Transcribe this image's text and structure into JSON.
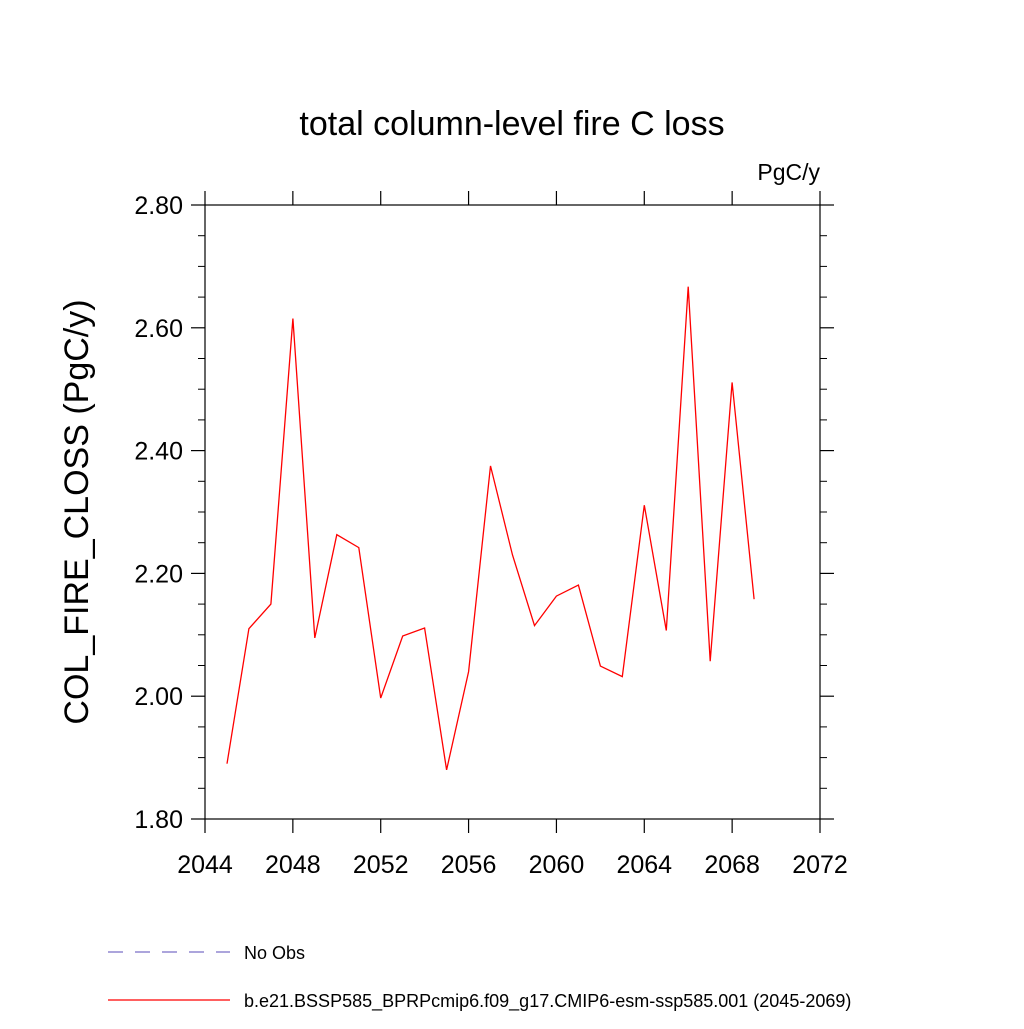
{
  "chart_data": {
    "type": "line",
    "title": "total column-level fire C loss",
    "units_label": "PgC/y",
    "xlabel": "",
    "ylabel": "COL_FIRE_CLOSS  (PgC/y)",
    "xlim": [
      2044,
      2072
    ],
    "ylim": [
      1.8,
      2.8
    ],
    "x_ticks": [
      2044,
      2048,
      2052,
      2056,
      2060,
      2064,
      2068,
      2072
    ],
    "x_tick_labels": [
      "2044",
      "2048",
      "2052",
      "2056",
      "2060",
      "2064",
      "2068",
      "2072"
    ],
    "y_ticks": [
      1.8,
      2.0,
      2.2,
      2.4,
      2.6,
      2.8
    ],
    "y_tick_labels": [
      "1.80",
      "2.00",
      "2.20",
      "2.40",
      "2.60",
      "2.80"
    ],
    "grid": false,
    "legend_position": "bottom",
    "series": [
      {
        "name": "b.e21.BSSP585_BPRPcmip6.f09_g17.CMIP6-esm-ssp585.001 (2045-2069)",
        "color": "#ff0000",
        "style": "solid",
        "x": [
          2045,
          2046,
          2047,
          2048,
          2049,
          2050,
          2051,
          2052,
          2053,
          2054,
          2055,
          2056,
          2057,
          2058,
          2059,
          2060,
          2061,
          2062,
          2063,
          2064,
          2065,
          2066,
          2067,
          2068,
          2069
        ],
        "y": [
          1.89,
          2.11,
          2.15,
          2.615,
          2.095,
          2.263,
          2.242,
          1.997,
          2.098,
          2.111,
          1.88,
          2.04,
          2.375,
          2.23,
          2.115,
          2.163,
          2.181,
          2.049,
          2.032,
          2.311,
          2.107,
          2.667,
          2.057,
          2.511,
          2.158
        ]
      }
    ],
    "legend": [
      {
        "label": "No Obs",
        "color": "#7b6fc8",
        "style": "dashed"
      },
      {
        "label": "b.e21.BSSP585_BPRPcmip6.f09_g17.CMIP6-esm-ssp585.001 (2045-2069)",
        "color": "#ff0000",
        "style": "solid"
      }
    ]
  }
}
